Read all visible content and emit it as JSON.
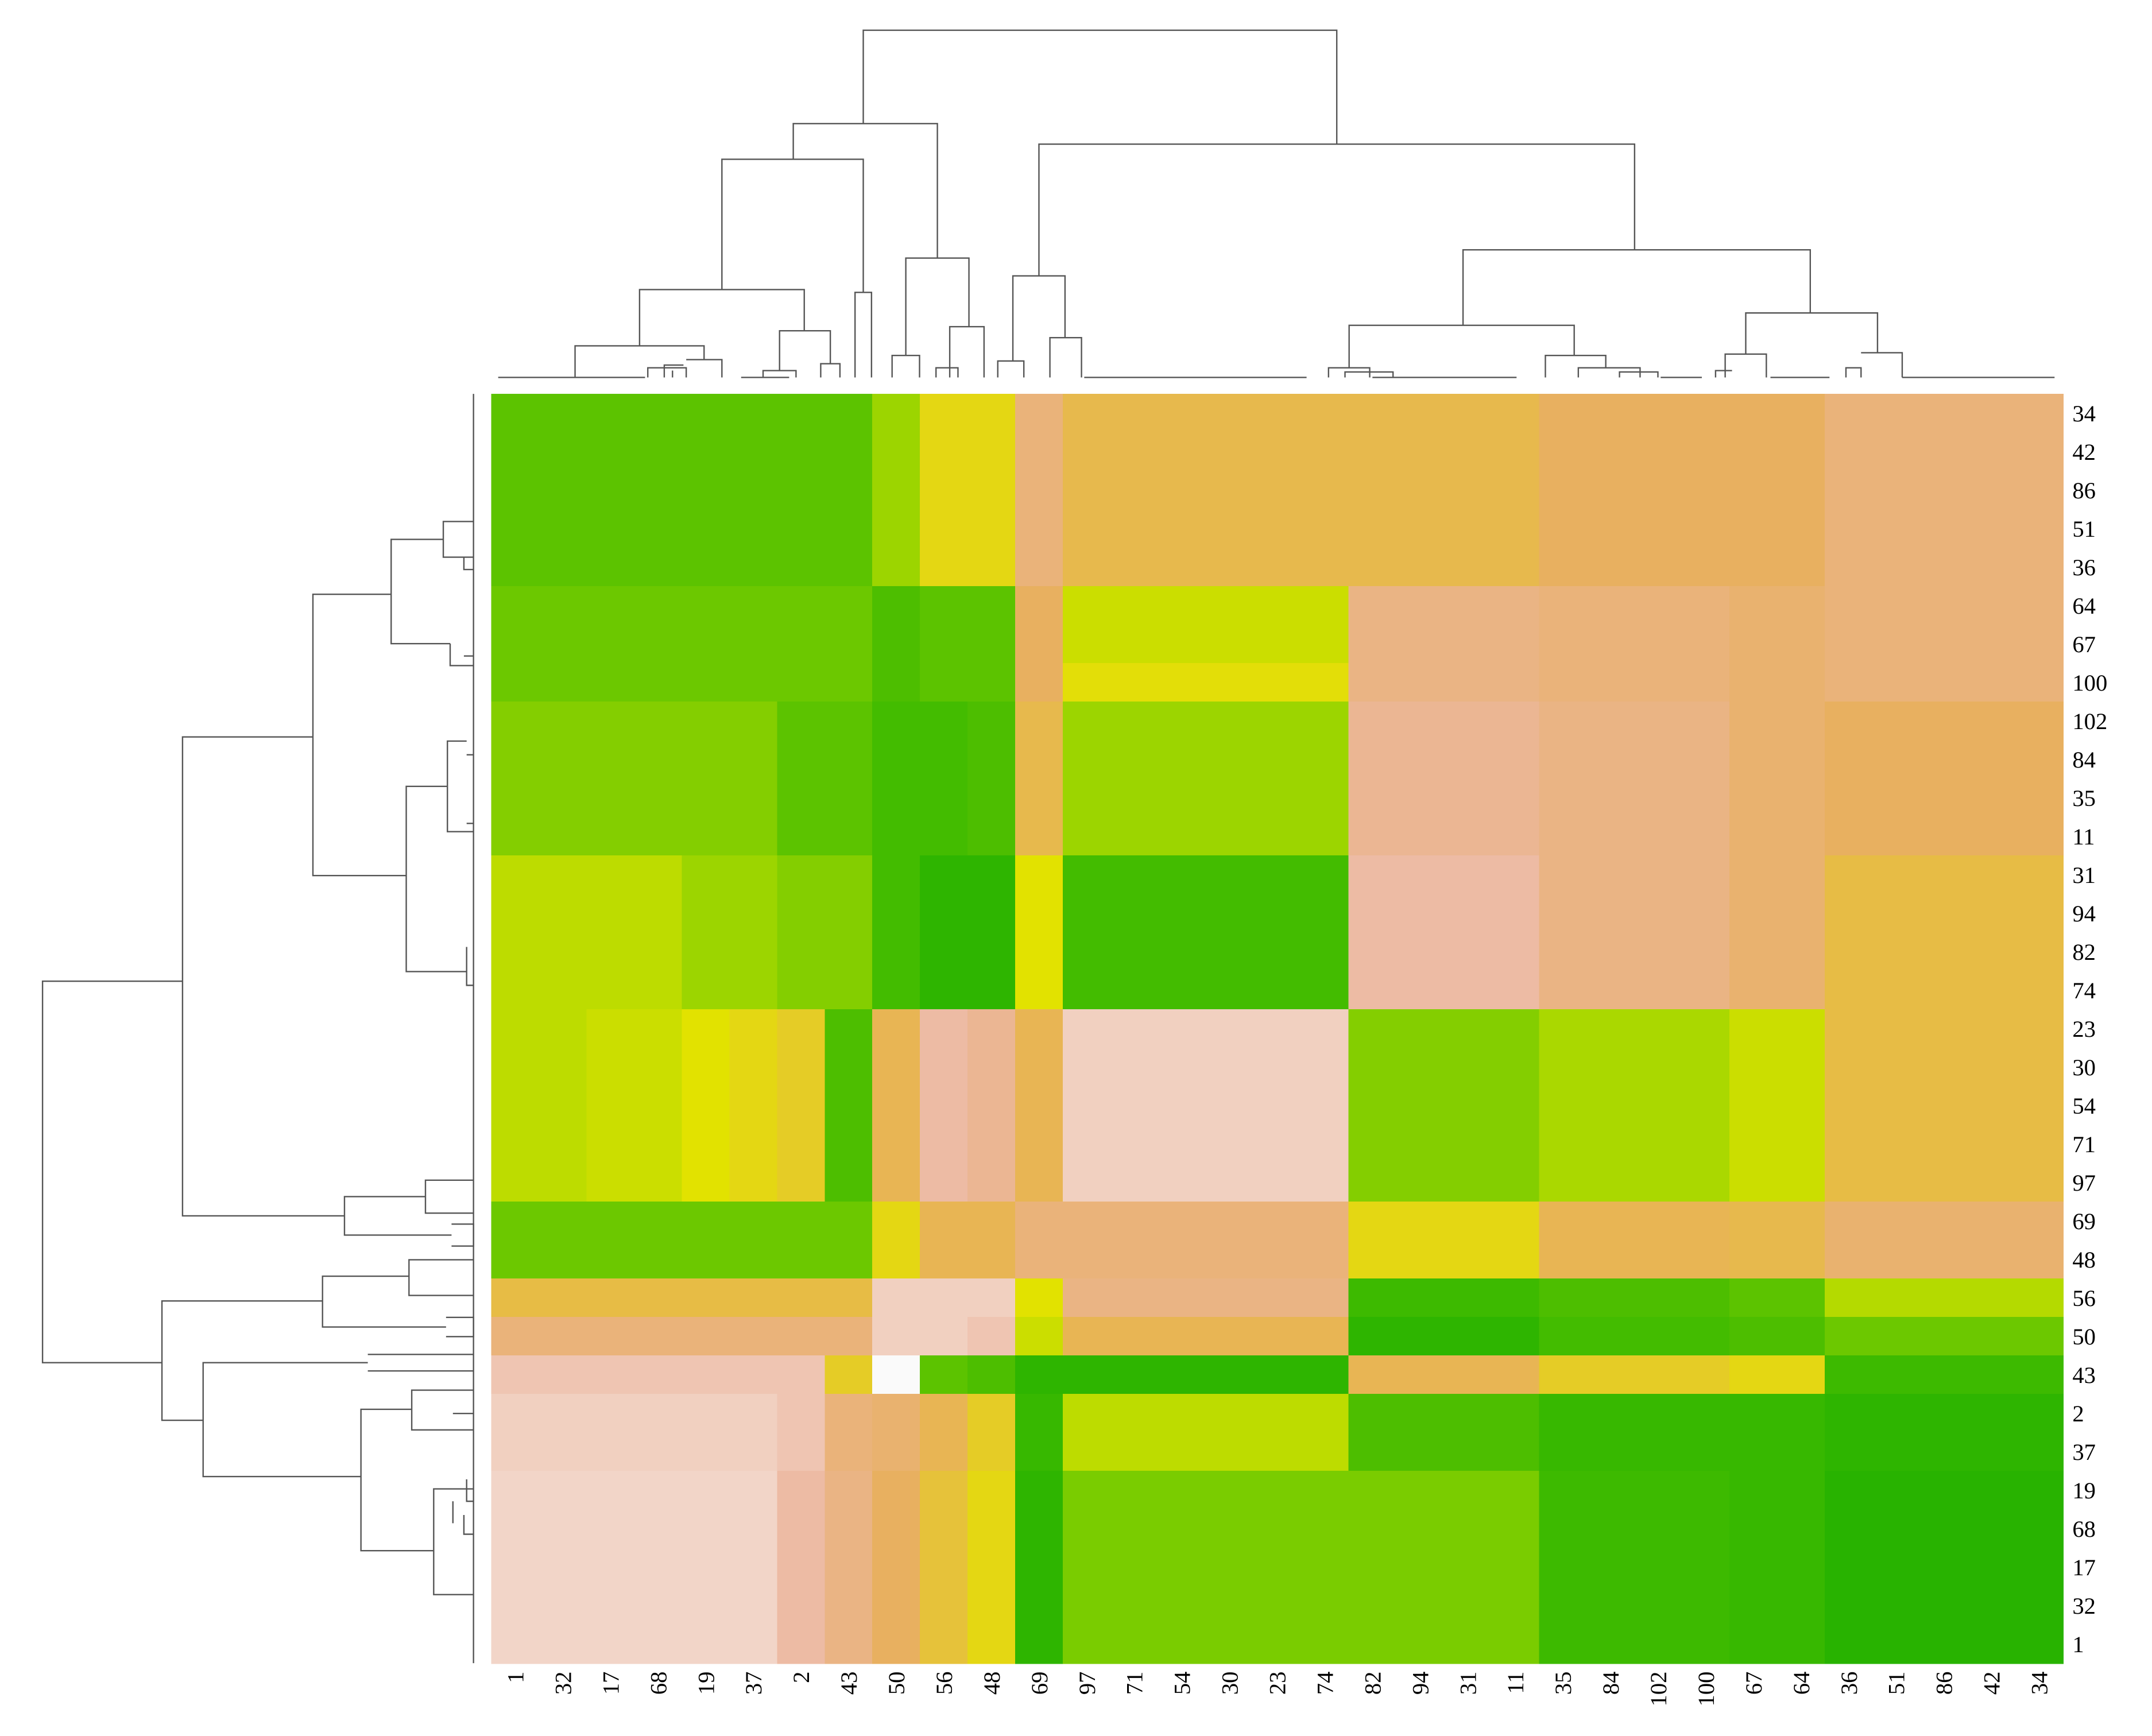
{
  "chart_data": {
    "type": "heatmap",
    "x_labels": [
      "1",
      "32",
      "17",
      "68",
      "19",
      "37",
      "2",
      "43",
      "50",
      "56",
      "48",
      "69",
      "97",
      "71",
      "54",
      "30",
      "23",
      "74",
      "82",
      "94",
      "31",
      "11",
      "35",
      "84",
      "102",
      "100",
      "67",
      "64",
      "36",
      "51",
      "86",
      "42",
      "34"
    ],
    "y_labels": [
      "34",
      "42",
      "86",
      "51",
      "36",
      "64",
      "67",
      "100",
      "102",
      "84",
      "35",
      "11",
      "31",
      "94",
      "82",
      "74",
      "23",
      "30",
      "54",
      "71",
      "97",
      "69",
      "48",
      "56",
      "50",
      "43",
      "2",
      "37",
      "19",
      "68",
      "17",
      "32",
      "1"
    ],
    "colormap": [
      "#1fb000",
      "#45bc00",
      "#6cc800",
      "#a8d800",
      "#e2e200",
      "#e6c630",
      "#e8b060",
      "#ecb8a0",
      "#fafafa"
    ],
    "values": [
      [
        0.2,
        0.2,
        0.2,
        0.2,
        0.2,
        0.2,
        0.2,
        0.2,
        0.35,
        0.55,
        0.55,
        0.8,
        0.7,
        0.7,
        0.7,
        0.7,
        0.7,
        0.7,
        0.7,
        0.7,
        0.7,
        0.7,
        0.75,
        0.75,
        0.75,
        0.75,
        0.75,
        0.75,
        0.8,
        0.8,
        0.8,
        0.8,
        0.8
      ],
      [
        0.2,
        0.2,
        0.2,
        0.2,
        0.2,
        0.2,
        0.2,
        0.2,
        0.35,
        0.55,
        0.55,
        0.8,
        0.7,
        0.7,
        0.7,
        0.7,
        0.7,
        0.7,
        0.7,
        0.7,
        0.7,
        0.7,
        0.75,
        0.75,
        0.75,
        0.75,
        0.75,
        0.75,
        0.8,
        0.8,
        0.8,
        0.8,
        0.8
      ],
      [
        0.2,
        0.2,
        0.2,
        0.2,
        0.2,
        0.2,
        0.2,
        0.2,
        0.35,
        0.55,
        0.55,
        0.8,
        0.7,
        0.7,
        0.7,
        0.7,
        0.7,
        0.7,
        0.7,
        0.7,
        0.7,
        0.7,
        0.75,
        0.75,
        0.75,
        0.75,
        0.75,
        0.75,
        0.8,
        0.8,
        0.8,
        0.8,
        0.8
      ],
      [
        0.2,
        0.2,
        0.2,
        0.2,
        0.2,
        0.2,
        0.2,
        0.2,
        0.35,
        0.55,
        0.55,
        0.8,
        0.7,
        0.7,
        0.7,
        0.7,
        0.7,
        0.7,
        0.7,
        0.7,
        0.7,
        0.7,
        0.75,
        0.75,
        0.75,
        0.75,
        0.75,
        0.75,
        0.8,
        0.8,
        0.8,
        0.8,
        0.8
      ],
      [
        0.2,
        0.2,
        0.2,
        0.2,
        0.2,
        0.2,
        0.2,
        0.2,
        0.35,
        0.55,
        0.55,
        0.8,
        0.7,
        0.7,
        0.7,
        0.7,
        0.7,
        0.7,
        0.7,
        0.7,
        0.7,
        0.7,
        0.75,
        0.75,
        0.75,
        0.75,
        0.75,
        0.75,
        0.8,
        0.8,
        0.8,
        0.8,
        0.8
      ],
      [
        0.25,
        0.25,
        0.25,
        0.25,
        0.25,
        0.25,
        0.25,
        0.25,
        0.15,
        0.2,
        0.2,
        0.75,
        0.45,
        0.45,
        0.45,
        0.45,
        0.45,
        0.45,
        0.82,
        0.82,
        0.82,
        0.82,
        0.8,
        0.8,
        0.8,
        0.8,
        0.78,
        0.78,
        0.8,
        0.8,
        0.8,
        0.8,
        0.8
      ],
      [
        0.25,
        0.25,
        0.25,
        0.25,
        0.25,
        0.25,
        0.25,
        0.25,
        0.15,
        0.2,
        0.2,
        0.75,
        0.45,
        0.45,
        0.45,
        0.45,
        0.45,
        0.45,
        0.82,
        0.82,
        0.82,
        0.82,
        0.8,
        0.8,
        0.8,
        0.8,
        0.78,
        0.78,
        0.8,
        0.8,
        0.8,
        0.8,
        0.8
      ],
      [
        0.25,
        0.25,
        0.25,
        0.25,
        0.25,
        0.25,
        0.25,
        0.25,
        0.15,
        0.2,
        0.2,
        0.75,
        0.52,
        0.52,
        0.52,
        0.52,
        0.52,
        0.52,
        0.82,
        0.82,
        0.82,
        0.82,
        0.8,
        0.8,
        0.8,
        0.8,
        0.78,
        0.78,
        0.8,
        0.8,
        0.8,
        0.8,
        0.8
      ],
      [
        0.3,
        0.3,
        0.3,
        0.3,
        0.3,
        0.3,
        0.2,
        0.2,
        0.12,
        0.12,
        0.15,
        0.7,
        0.35,
        0.35,
        0.35,
        0.35,
        0.35,
        0.35,
        0.85,
        0.85,
        0.85,
        0.85,
        0.82,
        0.82,
        0.82,
        0.82,
        0.78,
        0.78,
        0.75,
        0.75,
        0.75,
        0.75,
        0.75
      ],
      [
        0.3,
        0.3,
        0.3,
        0.3,
        0.3,
        0.3,
        0.2,
        0.2,
        0.12,
        0.12,
        0.15,
        0.7,
        0.35,
        0.35,
        0.35,
        0.35,
        0.35,
        0.35,
        0.85,
        0.85,
        0.85,
        0.85,
        0.82,
        0.82,
        0.82,
        0.82,
        0.78,
        0.78,
        0.75,
        0.75,
        0.75,
        0.75,
        0.75
      ],
      [
        0.3,
        0.3,
        0.3,
        0.3,
        0.3,
        0.3,
        0.2,
        0.2,
        0.12,
        0.12,
        0.15,
        0.7,
        0.35,
        0.35,
        0.35,
        0.35,
        0.35,
        0.35,
        0.85,
        0.85,
        0.85,
        0.85,
        0.82,
        0.82,
        0.82,
        0.82,
        0.78,
        0.78,
        0.75,
        0.75,
        0.75,
        0.75,
        0.75
      ],
      [
        0.3,
        0.3,
        0.3,
        0.3,
        0.3,
        0.3,
        0.2,
        0.2,
        0.12,
        0.12,
        0.15,
        0.7,
        0.35,
        0.35,
        0.35,
        0.35,
        0.35,
        0.35,
        0.85,
        0.85,
        0.85,
        0.85,
        0.82,
        0.82,
        0.82,
        0.82,
        0.78,
        0.78,
        0.75,
        0.75,
        0.75,
        0.75,
        0.75
      ],
      [
        0.42,
        0.42,
        0.42,
        0.42,
        0.35,
        0.35,
        0.3,
        0.3,
        0.12,
        0.05,
        0.05,
        0.5,
        0.12,
        0.12,
        0.12,
        0.12,
        0.12,
        0.12,
        0.88,
        0.88,
        0.88,
        0.88,
        0.82,
        0.82,
        0.82,
        0.82,
        0.78,
        0.78,
        0.68,
        0.68,
        0.68,
        0.68,
        0.68
      ],
      [
        0.42,
        0.42,
        0.42,
        0.42,
        0.35,
        0.35,
        0.3,
        0.3,
        0.12,
        0.05,
        0.05,
        0.5,
        0.12,
        0.12,
        0.12,
        0.12,
        0.12,
        0.12,
        0.88,
        0.88,
        0.88,
        0.88,
        0.82,
        0.82,
        0.82,
        0.82,
        0.78,
        0.78,
        0.68,
        0.68,
        0.68,
        0.68,
        0.68
      ],
      [
        0.42,
        0.42,
        0.42,
        0.42,
        0.35,
        0.35,
        0.3,
        0.3,
        0.12,
        0.05,
        0.05,
        0.5,
        0.12,
        0.12,
        0.12,
        0.12,
        0.12,
        0.12,
        0.88,
        0.88,
        0.88,
        0.88,
        0.82,
        0.82,
        0.82,
        0.82,
        0.78,
        0.78,
        0.68,
        0.68,
        0.68,
        0.68,
        0.68
      ],
      [
        0.42,
        0.42,
        0.42,
        0.42,
        0.35,
        0.35,
        0.3,
        0.3,
        0.12,
        0.05,
        0.05,
        0.5,
        0.12,
        0.12,
        0.12,
        0.12,
        0.12,
        0.12,
        0.88,
        0.88,
        0.88,
        0.88,
        0.82,
        0.82,
        0.82,
        0.82,
        0.78,
        0.78,
        0.68,
        0.68,
        0.68,
        0.68,
        0.68
      ],
      [
        0.42,
        0.42,
        0.45,
        0.45,
        0.5,
        0.55,
        0.6,
        0.15,
        0.72,
        0.88,
        0.85,
        0.72,
        0.92,
        0.92,
        0.92,
        0.92,
        0.92,
        0.92,
        0.3,
        0.3,
        0.3,
        0.3,
        0.38,
        0.38,
        0.38,
        0.38,
        0.45,
        0.45,
        0.68,
        0.68,
        0.68,
        0.68,
        0.68
      ],
      [
        0.42,
        0.42,
        0.45,
        0.45,
        0.5,
        0.55,
        0.6,
        0.15,
        0.72,
        0.88,
        0.85,
        0.72,
        0.92,
        0.92,
        0.92,
        0.92,
        0.92,
        0.92,
        0.3,
        0.3,
        0.3,
        0.3,
        0.38,
        0.38,
        0.38,
        0.38,
        0.45,
        0.45,
        0.68,
        0.68,
        0.68,
        0.68,
        0.68
      ],
      [
        0.42,
        0.42,
        0.45,
        0.45,
        0.5,
        0.55,
        0.6,
        0.15,
        0.72,
        0.88,
        0.85,
        0.72,
        0.92,
        0.92,
        0.92,
        0.92,
        0.92,
        0.92,
        0.3,
        0.3,
        0.3,
        0.3,
        0.38,
        0.38,
        0.38,
        0.38,
        0.45,
        0.45,
        0.68,
        0.68,
        0.68,
        0.68,
        0.68
      ],
      [
        0.42,
        0.42,
        0.45,
        0.45,
        0.5,
        0.55,
        0.6,
        0.15,
        0.72,
        0.88,
        0.85,
        0.72,
        0.92,
        0.92,
        0.92,
        0.92,
        0.92,
        0.92,
        0.3,
        0.3,
        0.3,
        0.3,
        0.38,
        0.38,
        0.38,
        0.38,
        0.45,
        0.45,
        0.68,
        0.68,
        0.68,
        0.68,
        0.68
      ],
      [
        0.42,
        0.42,
        0.45,
        0.45,
        0.5,
        0.55,
        0.6,
        0.15,
        0.72,
        0.88,
        0.85,
        0.72,
        0.92,
        0.92,
        0.92,
        0.92,
        0.92,
        0.92,
        0.3,
        0.3,
        0.3,
        0.3,
        0.38,
        0.38,
        0.38,
        0.38,
        0.45,
        0.45,
        0.68,
        0.68,
        0.68,
        0.68,
        0.68
      ],
      [
        0.25,
        0.25,
        0.25,
        0.25,
        0.25,
        0.25,
        0.25,
        0.25,
        0.55,
        0.72,
        0.72,
        0.8,
        0.8,
        0.8,
        0.8,
        0.8,
        0.8,
        0.8,
        0.55,
        0.55,
        0.55,
        0.55,
        0.72,
        0.72,
        0.72,
        0.72,
        0.7,
        0.7,
        0.78,
        0.78,
        0.78,
        0.78,
        0.78
      ],
      [
        0.25,
        0.25,
        0.25,
        0.25,
        0.25,
        0.25,
        0.25,
        0.25,
        0.55,
        0.72,
        0.72,
        0.8,
        0.8,
        0.8,
        0.8,
        0.8,
        0.8,
        0.8,
        0.55,
        0.55,
        0.55,
        0.55,
        0.72,
        0.72,
        0.72,
        0.72,
        0.7,
        0.7,
        0.78,
        0.78,
        0.78,
        0.78,
        0.78
      ],
      [
        0.68,
        0.68,
        0.68,
        0.68,
        0.68,
        0.68,
        0.68,
        0.68,
        0.92,
        0.92,
        0.92,
        0.5,
        0.82,
        0.82,
        0.82,
        0.82,
        0.82,
        0.82,
        0.1,
        0.1,
        0.1,
        0.1,
        0.15,
        0.15,
        0.15,
        0.15,
        0.2,
        0.2,
        0.4,
        0.4,
        0.4,
        0.4,
        0.4
      ],
      [
        0.8,
        0.8,
        0.8,
        0.8,
        0.8,
        0.8,
        0.8,
        0.8,
        0.92,
        0.92,
        0.9,
        0.45,
        0.72,
        0.72,
        0.72,
        0.72,
        0.72,
        0.72,
        0.05,
        0.05,
        0.05,
        0.05,
        0.12,
        0.12,
        0.12,
        0.12,
        0.15,
        0.15,
        0.25,
        0.25,
        0.25,
        0.25,
        0.25
      ],
      [
        0.9,
        0.9,
        0.9,
        0.9,
        0.9,
        0.9,
        0.9,
        0.6,
        1,
        0.2,
        0.15,
        0.05,
        0.05,
        0.05,
        0.05,
        0.05,
        0.05,
        0.05,
        0.72,
        0.72,
        0.72,
        0.72,
        0.6,
        0.6,
        0.6,
        0.6,
        0.55,
        0.55,
        0.1,
        0.1,
        0.1,
        0.1,
        0.1
      ],
      [
        0.92,
        0.92,
        0.92,
        0.92,
        0.92,
        0.92,
        0.9,
        0.8,
        0.78,
        0.72,
        0.6,
        0.08,
        0.42,
        0.42,
        0.42,
        0.42,
        0.42,
        0.42,
        0.15,
        0.15,
        0.15,
        0.15,
        0.08,
        0.08,
        0.08,
        0.08,
        0.08,
        0.08,
        0.05,
        0.05,
        0.05,
        0.05,
        0.05
      ],
      [
        0.92,
        0.92,
        0.92,
        0.92,
        0.92,
        0.92,
        0.9,
        0.8,
        0.78,
        0.72,
        0.6,
        0.08,
        0.42,
        0.42,
        0.42,
        0.42,
        0.42,
        0.42,
        0.15,
        0.15,
        0.15,
        0.15,
        0.08,
        0.08,
        0.08,
        0.08,
        0.08,
        0.08,
        0.05,
        0.05,
        0.05,
        0.05,
        0.05
      ],
      [
        0.93,
        0.93,
        0.93,
        0.93,
        0.93,
        0.93,
        0.88,
        0.82,
        0.75,
        0.65,
        0.55,
        0.05,
        0.28,
        0.28,
        0.28,
        0.28,
        0.28,
        0.28,
        0.28,
        0.28,
        0.28,
        0.28,
        0.1,
        0.1,
        0.1,
        0.1,
        0.08,
        0.08,
        0.03,
        0.03,
        0.03,
        0.03,
        0.03
      ],
      [
        0.93,
        0.93,
        0.93,
        0.93,
        0.93,
        0.93,
        0.88,
        0.82,
        0.75,
        0.65,
        0.55,
        0.05,
        0.28,
        0.28,
        0.28,
        0.28,
        0.28,
        0.28,
        0.28,
        0.28,
        0.28,
        0.28,
        0.1,
        0.1,
        0.1,
        0.1,
        0.08,
        0.08,
        0.03,
        0.03,
        0.03,
        0.03,
        0.03
      ],
      [
        0.93,
        0.93,
        0.93,
        0.93,
        0.93,
        0.93,
        0.88,
        0.82,
        0.75,
        0.65,
        0.55,
        0.05,
        0.28,
        0.28,
        0.28,
        0.28,
        0.28,
        0.28,
        0.28,
        0.28,
        0.28,
        0.28,
        0.1,
        0.1,
        0.1,
        0.1,
        0.08,
        0.08,
        0.03,
        0.03,
        0.03,
        0.03,
        0.03
      ],
      [
        0.93,
        0.93,
        0.93,
        0.93,
        0.93,
        0.93,
        0.88,
        0.82,
        0.75,
        0.65,
        0.55,
        0.05,
        0.28,
        0.28,
        0.28,
        0.28,
        0.28,
        0.28,
        0.28,
        0.28,
        0.28,
        0.28,
        0.1,
        0.1,
        0.1,
        0.1,
        0.08,
        0.08,
        0.03,
        0.03,
        0.03,
        0.03,
        0.03
      ],
      [
        0.93,
        0.93,
        0.93,
        0.93,
        0.93,
        0.93,
        0.88,
        0.82,
        0.75,
        0.65,
        0.55,
        0.05,
        0.28,
        0.28,
        0.28,
        0.28,
        0.28,
        0.28,
        0.28,
        0.28,
        0.28,
        0.28,
        0.1,
        0.1,
        0.1,
        0.1,
        0.08,
        0.08,
        0.03,
        0.03,
        0.03,
        0.03,
        0.03
      ]
    ]
  }
}
